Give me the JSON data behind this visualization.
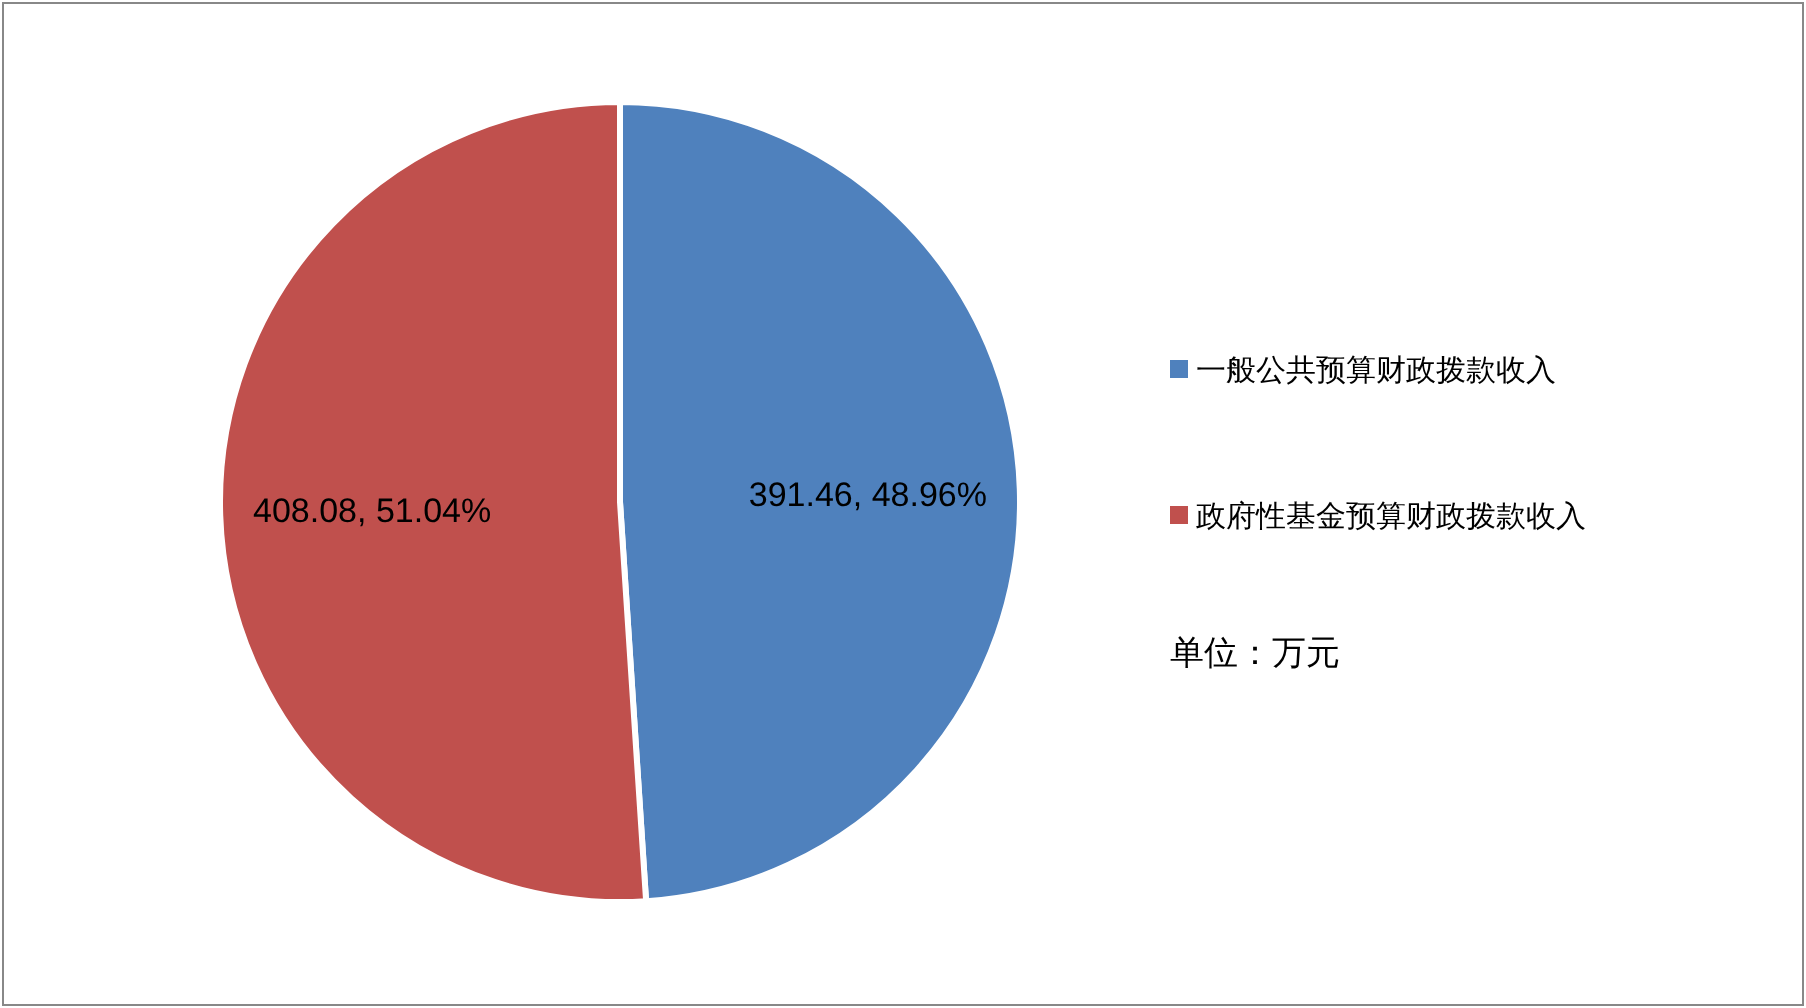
{
  "chart_data": {
    "type": "pie",
    "categories": [
      "一般公共预算财政拨款收入",
      "政府性基金预算财政拨款收入"
    ],
    "values": [
      391.46,
      408.08
    ],
    "colors": [
      "#4f81bd",
      "#c0504d"
    ],
    "value_labels": [
      "391.46, 48.96%",
      "408.08, 51.04%"
    ],
    "legend": "right",
    "annotations": [
      "单位：万元"
    ]
  }
}
